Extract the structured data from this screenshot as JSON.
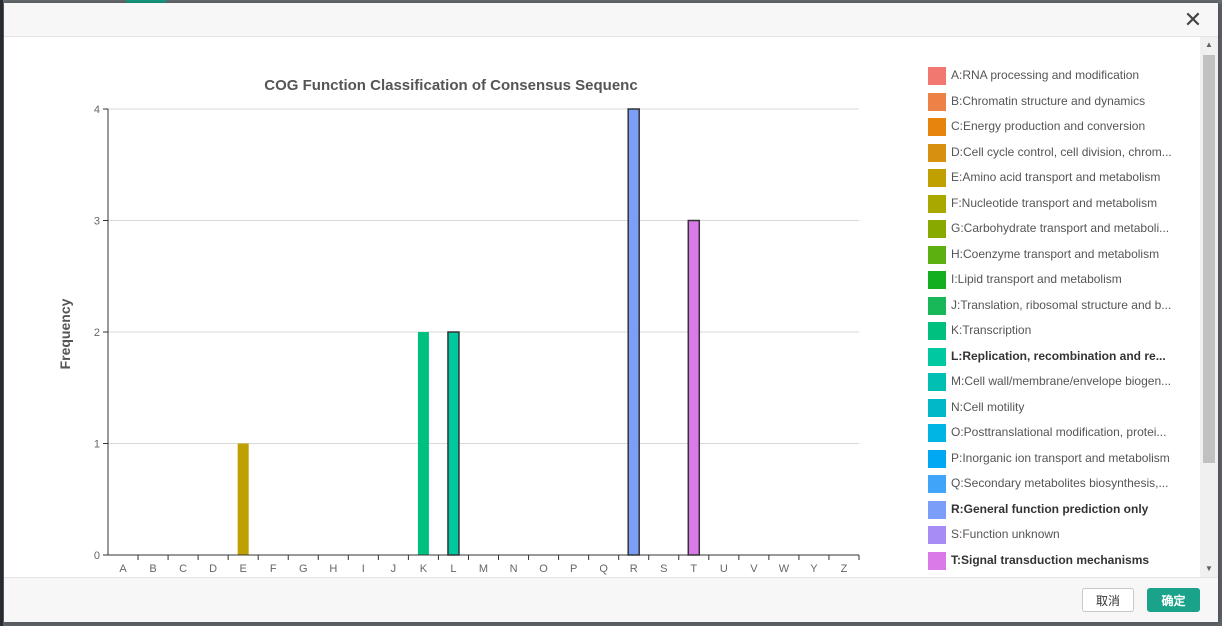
{
  "buttons": {
    "cancel": "取消",
    "ok": "确定"
  },
  "header": {
    "close_icon": "close-icon"
  },
  "chart_data": {
    "type": "bar",
    "title": "COG Function Classification of Consensus Sequenc",
    "ylabel": "Frequency",
    "xlabel": "",
    "ylim": [
      0,
      4
    ],
    "yticks": [
      "0",
      "1",
      "2",
      "3",
      "4"
    ],
    "grid": true,
    "legend_position": "right",
    "categories": [
      "A",
      "B",
      "C",
      "D",
      "E",
      "F",
      "G",
      "H",
      "I",
      "J",
      "K",
      "L",
      "M",
      "N",
      "O",
      "P",
      "Q",
      "R",
      "S",
      "T",
      "U",
      "V",
      "W",
      "Y",
      "Z"
    ],
    "values": [
      0,
      0,
      0,
      0,
      1,
      0,
      0,
      0,
      0,
      0,
      2,
      2,
      0,
      0,
      0,
      0,
      0,
      4,
      0,
      3,
      0,
      0,
      0,
      0,
      0
    ],
    "highlighted": [
      "L",
      "R",
      "T"
    ],
    "colors": {
      "A": "#f07870",
      "B": "#ec8245",
      "C": "#e6850e",
      "D": "#d89010",
      "E": "#c0a000",
      "F": "#a8a800",
      "G": "#88aa00",
      "H": "#5cb010",
      "I": "#10b020",
      "J": "#18b858",
      "K": "#00c080",
      "L": "#00c8a0",
      "M": "#00c0b4",
      "N": "#00b8c8",
      "O": "#00b4e4",
      "P": "#00a8f4",
      "Q": "#40a4f8",
      "R": "#7b9ff8",
      "S": "#a78cf6",
      "T": "#d97ae8"
    },
    "legend": [
      {
        "key": "A",
        "label": "A:RNA processing and modification",
        "bold": false
      },
      {
        "key": "B",
        "label": "B:Chromatin structure and dynamics",
        "bold": false
      },
      {
        "key": "C",
        "label": "C:Energy production and conversion",
        "bold": false
      },
      {
        "key": "D",
        "label": "D:Cell cycle control, cell division, chrom...",
        "bold": false
      },
      {
        "key": "E",
        "label": "E:Amino acid transport and metabolism",
        "bold": false
      },
      {
        "key": "F",
        "label": "F:Nucleotide transport and metabolism",
        "bold": false
      },
      {
        "key": "G",
        "label": "G:Carbohydrate transport and metaboli...",
        "bold": false
      },
      {
        "key": "H",
        "label": "H:Coenzyme transport and metabolism",
        "bold": false
      },
      {
        "key": "I",
        "label": "I:Lipid transport and metabolism",
        "bold": false
      },
      {
        "key": "J",
        "label": "J:Translation, ribosomal structure and b...",
        "bold": false
      },
      {
        "key": "K",
        "label": "K:Transcription",
        "bold": false
      },
      {
        "key": "L",
        "label": "L:Replication, recombination and re...",
        "bold": true
      },
      {
        "key": "M",
        "label": "M:Cell wall/membrane/envelope biogen...",
        "bold": false
      },
      {
        "key": "N",
        "label": "N:Cell motility",
        "bold": false
      },
      {
        "key": "O",
        "label": "O:Posttranslational modification, protei...",
        "bold": false
      },
      {
        "key": "P",
        "label": "P:Inorganic ion transport and metabolism",
        "bold": false
      },
      {
        "key": "Q",
        "label": "Q:Secondary metabolites biosynthesis,...",
        "bold": false
      },
      {
        "key": "R",
        "label": "R:General function prediction only",
        "bold": true
      },
      {
        "key": "S",
        "label": "S:Function unknown",
        "bold": false
      },
      {
        "key": "T",
        "label": "T:Signal transduction mechanisms",
        "bold": true
      }
    ]
  }
}
